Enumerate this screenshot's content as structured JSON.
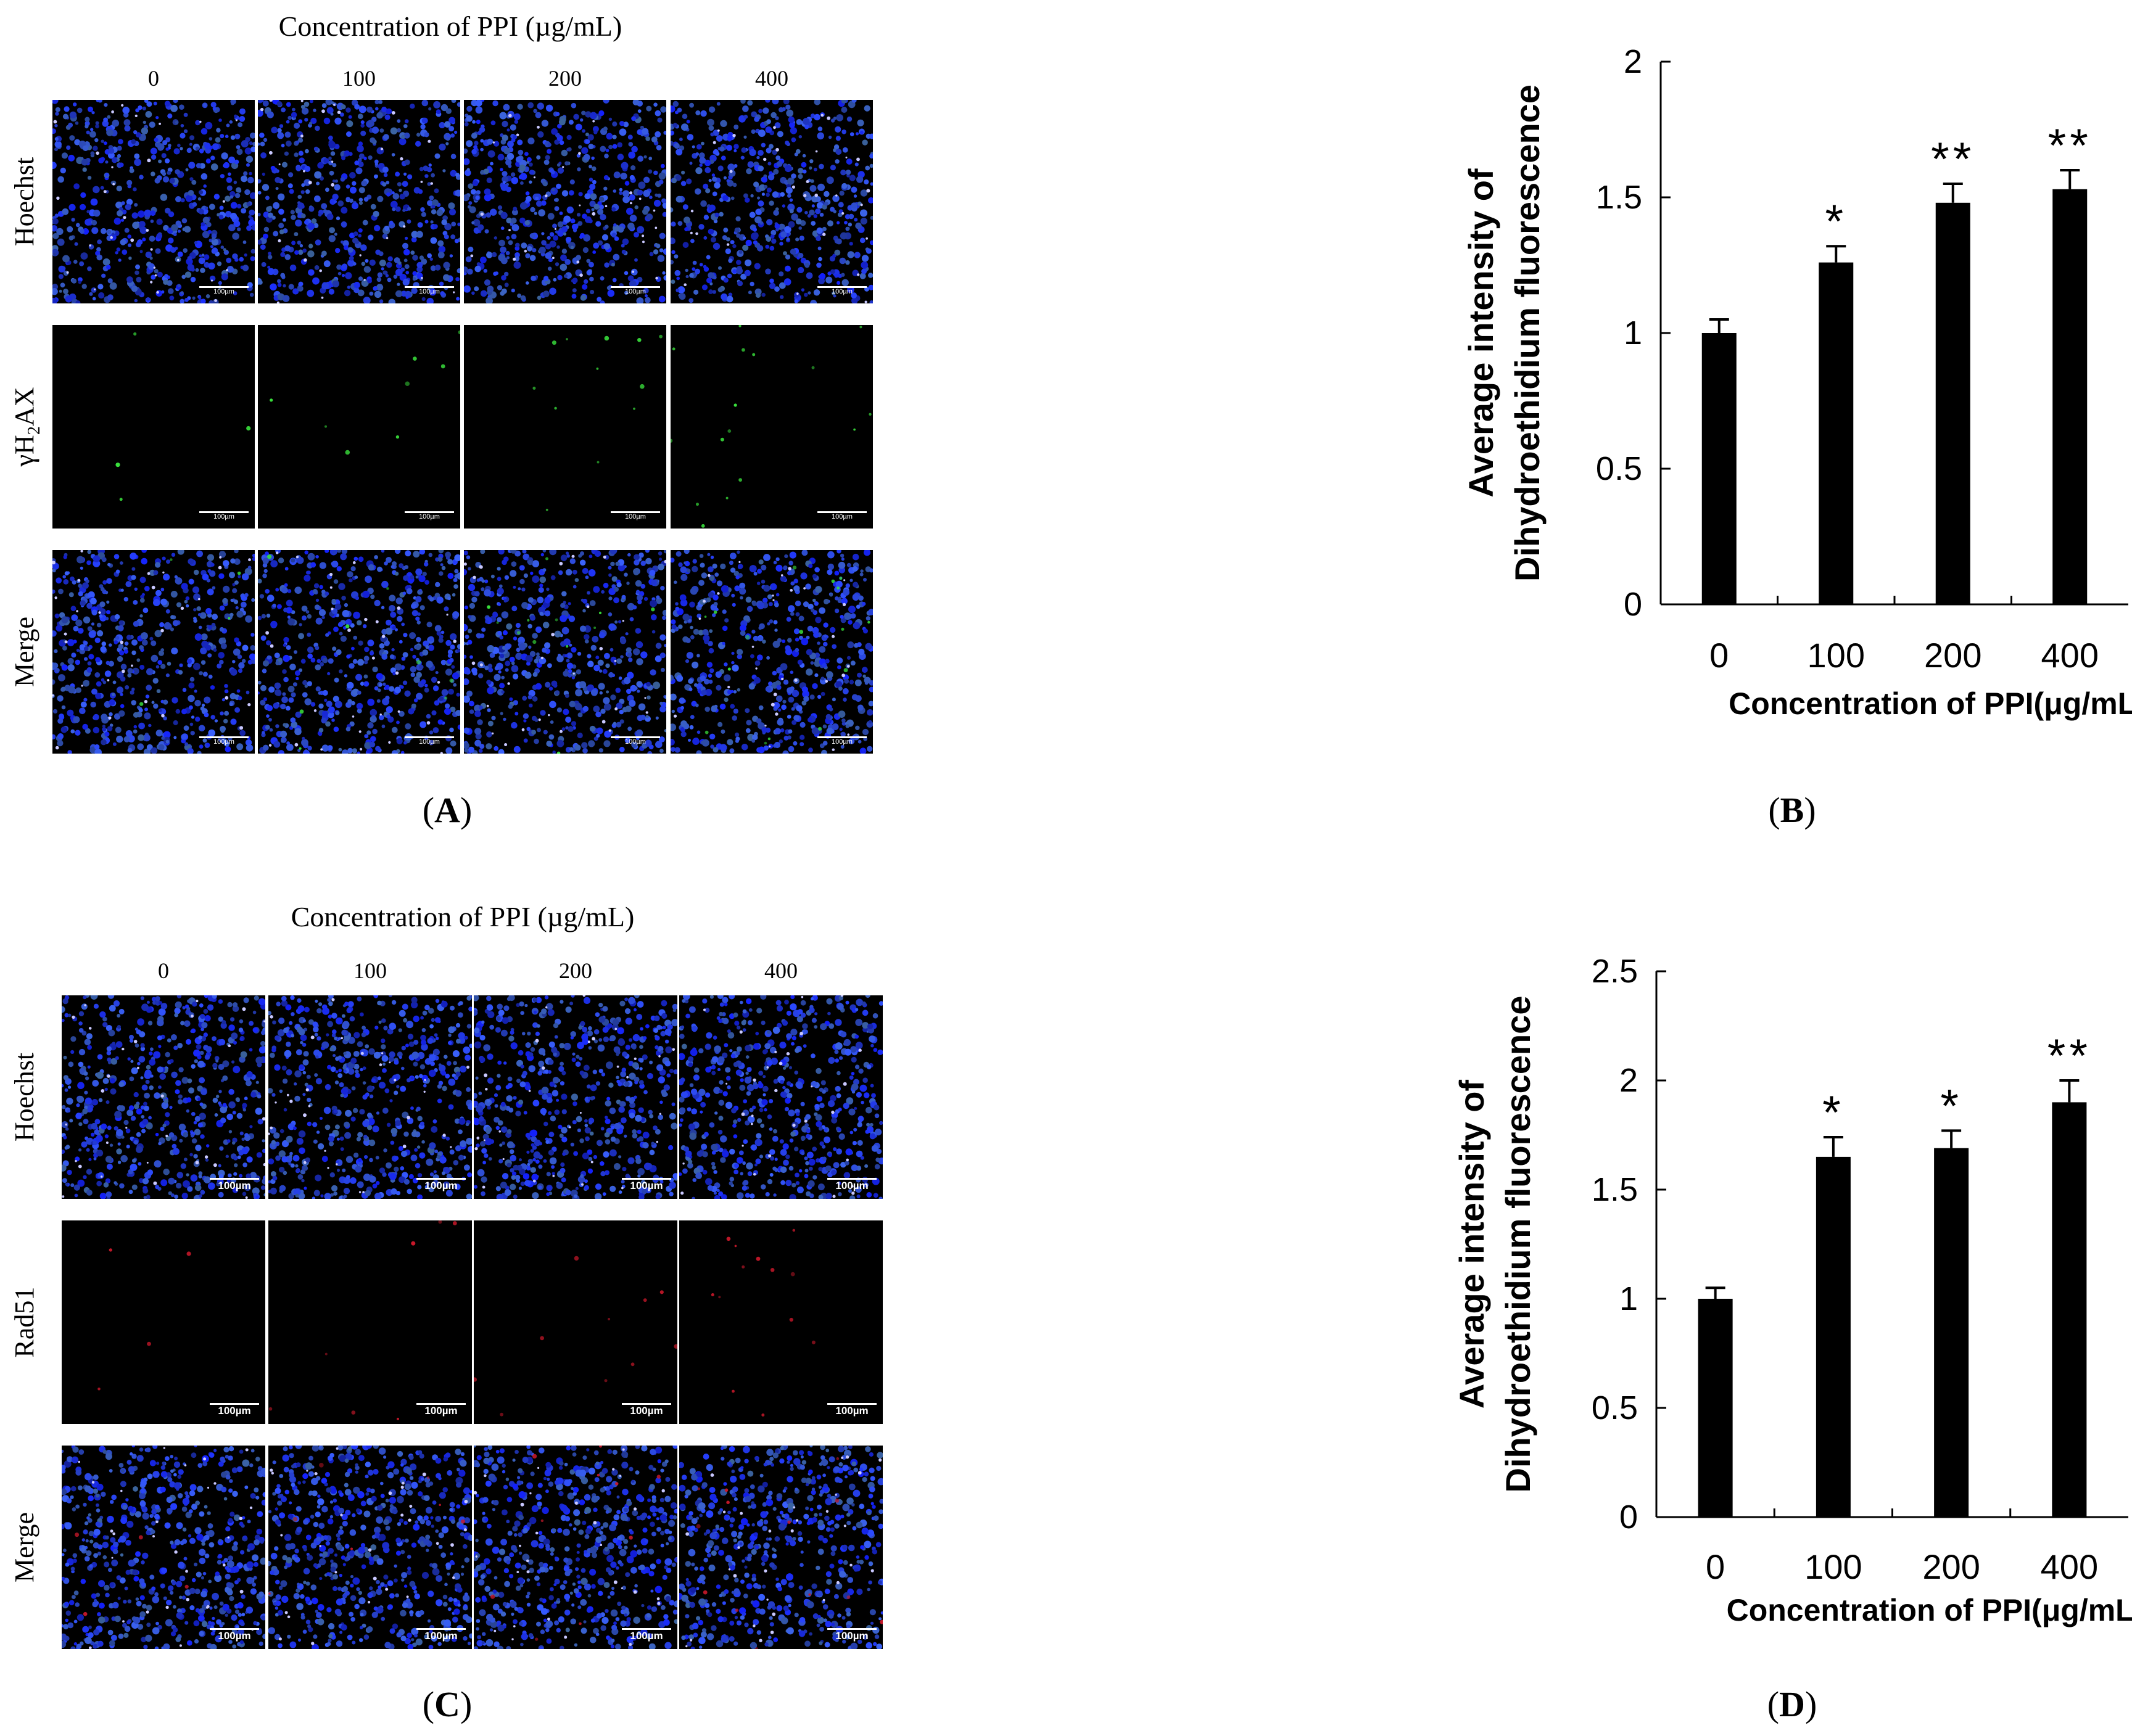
{
  "panel_A": {
    "title": "Concentration of PPI (µg/mL)",
    "columns": [
      "0",
      "100",
      "200",
      "400"
    ],
    "rows": [
      {
        "label": "Hoechst",
        "stain": "hoechst"
      },
      {
        "label": "γH2AX",
        "stain": "green"
      },
      {
        "label": "Merge",
        "stain": "merge_green"
      }
    ],
    "scale_label": "100µm",
    "letter_open": "(",
    "letter": "A",
    "letter_close": ")"
  },
  "panel_C": {
    "title": "Concentration of PPI (µg/mL)",
    "columns": [
      "0",
      "100",
      "200",
      "400"
    ],
    "rows": [
      {
        "label": "Hoechst",
        "stain": "hoechst"
      },
      {
        "label": "Rad51",
        "stain": "red"
      },
      {
        "label": "Merge",
        "stain": "merge_red"
      }
    ],
    "scale_label": "100µm",
    "letter_open": "(",
    "letter": "C",
    "letter_close": ")"
  },
  "panel_B": {
    "letter_open": "(",
    "letter": "B",
    "letter_close": ")"
  },
  "panel_D": {
    "letter_open": "(",
    "letter": "D",
    "letter_close": ")"
  },
  "colors": {
    "hoechst": "#2a3fd8",
    "green": "#39e03c",
    "red": "#c8182a",
    "bar": "#000000"
  },
  "chart_data": [
    {
      "type": "bar",
      "panel": "B",
      "categories": [
        "0",
        "100",
        "200",
        "400"
      ],
      "values": [
        1.0,
        1.26,
        1.48,
        1.53
      ],
      "errors": [
        0.05,
        0.06,
        0.07,
        0.07
      ],
      "significance": [
        "",
        "*",
        "**",
        "**"
      ],
      "ylabel_line1": "Average intensity of",
      "ylabel_line2": "Dihydroethidium fluorescence",
      "xlabel": "Concentration of PPI(μg/mL)",
      "ylim": [
        0,
        2
      ],
      "yticks": [
        "0",
        "0.5",
        "1",
        "1.5",
        "2"
      ],
      "ytick_values": [
        0,
        0.5,
        1,
        1.5,
        2
      ]
    },
    {
      "type": "bar",
      "panel": "D",
      "categories": [
        "0",
        "100",
        "200",
        "400"
      ],
      "values": [
        1.0,
        1.65,
        1.69,
        1.9
      ],
      "errors": [
        0.05,
        0.09,
        0.08,
        0.1
      ],
      "significance": [
        "",
        "*",
        "*",
        "**"
      ],
      "ylabel_line1": "Average intensity of",
      "ylabel_line2": "Dihydroethidium fluorescence",
      "xlabel": "Concentration of PPI(μg/mL)",
      "ylim": [
        0,
        2.5
      ],
      "yticks": [
        "0",
        "0.5",
        "1",
        "1.5",
        "2",
        "2.5"
      ],
      "ytick_values": [
        0,
        0.5,
        1,
        1.5,
        2,
        2.5
      ]
    }
  ]
}
